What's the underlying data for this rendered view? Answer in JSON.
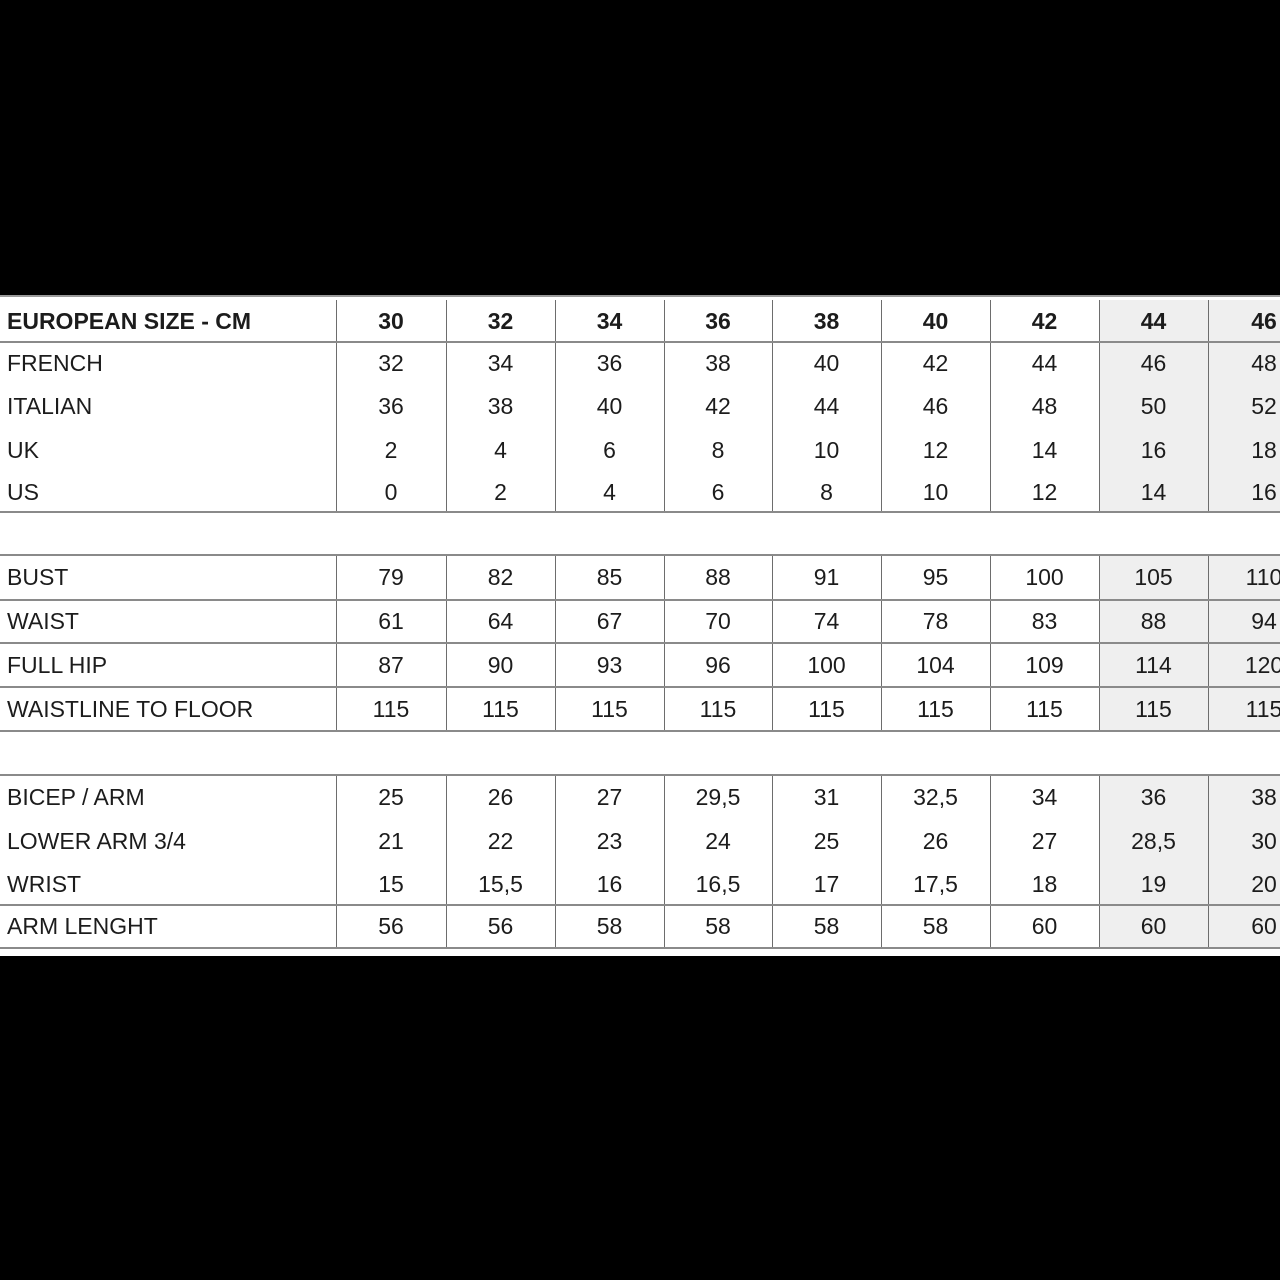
{
  "size_chart": {
    "columns": [
      "30",
      "32",
      "34",
      "36",
      "38",
      "40",
      "42",
      "44",
      "46"
    ],
    "highlighted_columns": [
      "44",
      "46"
    ],
    "highlight_color": "#efefef",
    "groups": [
      {
        "rows": [
          {
            "label": "EUROPEAN SIZE - CM",
            "header": true,
            "values": [
              "30",
              "32",
              "34",
              "36",
              "38",
              "40",
              "42",
              "44",
              "46"
            ]
          },
          {
            "label": "FRENCH",
            "values": [
              "32",
              "34",
              "36",
              "38",
              "40",
              "42",
              "44",
              "46",
              "48"
            ]
          },
          {
            "label": "ITALIAN",
            "values": [
              "36",
              "38",
              "40",
              "42",
              "44",
              "46",
              "48",
              "50",
              "52"
            ]
          },
          {
            "label": "UK",
            "values": [
              "2",
              "4",
              "6",
              "8",
              "10",
              "12",
              "14",
              "16",
              "18"
            ]
          },
          {
            "label": "US",
            "values": [
              "0",
              "2",
              "4",
              "6",
              "8",
              "10",
              "12",
              "14",
              "16"
            ]
          }
        ]
      },
      {
        "rows": [
          {
            "label": "BUST",
            "values": [
              "79",
              "82",
              "85",
              "88",
              "91",
              "95",
              "100",
              "105",
              "110"
            ]
          },
          {
            "label": "WAIST",
            "values": [
              "61",
              "64",
              "67",
              "70",
              "74",
              "78",
              "83",
              "88",
              "94"
            ]
          },
          {
            "label": "FULL HIP",
            "values": [
              "87",
              "90",
              "93",
              "96",
              "100",
              "104",
              "109",
              "114",
              "120"
            ]
          },
          {
            "label": "WAISTLINE TO FLOOR",
            "values": [
              "115",
              "115",
              "115",
              "115",
              "115",
              "115",
              "115",
              "115",
              "115"
            ]
          }
        ]
      },
      {
        "rows": [
          {
            "label": "BICEP / ARM",
            "values": [
              "25",
              "26",
              "27",
              "29,5",
              "31",
              "32,5",
              "34",
              "36",
              "38"
            ]
          },
          {
            "label": "LOWER ARM 3/4",
            "values": [
              "21",
              "22",
              "23",
              "24",
              "25",
              "26",
              "27",
              "28,5",
              "30"
            ]
          },
          {
            "label": "WRIST",
            "values": [
              "15",
              "15,5",
              "16",
              "16,5",
              "17",
              "17,5",
              "18",
              "19",
              "20"
            ]
          },
          {
            "label": "ARM LENGHT",
            "values": [
              "56",
              "56",
              "58",
              "58",
              "58",
              "58",
              "60",
              "60",
              "60"
            ]
          }
        ]
      }
    ]
  }
}
